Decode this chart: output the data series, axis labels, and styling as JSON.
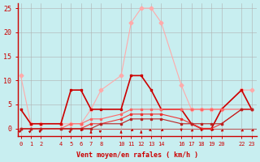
{
  "xlabel": "Vent moyen/en rafales ( km/h )",
  "background_color": "#c8eef0",
  "grid_color": "#b0b0b0",
  "xlim": [
    -0.3,
    23.5
  ],
  "ylim": [
    -1.5,
    26
  ],
  "yticks": [
    0,
    5,
    10,
    15,
    20,
    25
  ],
  "x_ticks": [
    0,
    1,
    2,
    4,
    5,
    6,
    7,
    8,
    10,
    11,
    12,
    13,
    14,
    16,
    17,
    18,
    19,
    20,
    22,
    23
  ],
  "series": [
    {
      "x": [
        0,
        1,
        2,
        4,
        5,
        6,
        7,
        8,
        10,
        11,
        12,
        13,
        14,
        16,
        17,
        18,
        19,
        20,
        22,
        23
      ],
      "y": [
        11,
        1,
        1,
        1,
        1,
        1,
        4,
        8,
        11,
        22,
        25,
        25,
        22,
        9,
        4,
        4,
        4,
        4,
        8,
        8
      ],
      "color": "#ffaaaa",
      "lw": 0.8,
      "marker": "D",
      "ms": 2.5
    },
    {
      "x": [
        0,
        1,
        2,
        4,
        5,
        6,
        7,
        8,
        10,
        11,
        12,
        13,
        14,
        16,
        17,
        18,
        19,
        20,
        22,
        23
      ],
      "y": [
        4,
        1,
        1,
        1,
        8,
        8,
        4,
        4,
        4,
        11,
        11,
        8,
        4,
        4,
        1,
        0,
        0,
        4,
        8,
        4
      ],
      "color": "#cc0000",
      "lw": 1.2,
      "marker": "s",
      "ms": 2.0
    },
    {
      "x": [
        0,
        1,
        2,
        4,
        5,
        6,
        7,
        8,
        10,
        11,
        12,
        13,
        14,
        16,
        17,
        18,
        19,
        20,
        22,
        23
      ],
      "y": [
        0,
        0,
        0,
        0,
        1,
        1,
        2,
        2,
        3,
        4,
        4,
        4,
        4,
        4,
        4,
        4,
        4,
        4,
        4,
        4
      ],
      "color": "#ff6666",
      "lw": 0.8,
      "marker": "s",
      "ms": 1.5
    },
    {
      "x": [
        0,
        1,
        2,
        4,
        5,
        6,
        7,
        8,
        10,
        11,
        12,
        13,
        14,
        16,
        17,
        18,
        19,
        20,
        22,
        23
      ],
      "y": [
        0,
        0,
        0,
        0,
        0,
        0,
        1,
        1,
        2,
        3,
        3,
        3,
        3,
        2,
        1,
        0,
        0,
        1,
        4,
        4
      ],
      "color": "#ee3333",
      "lw": 0.8,
      "marker": "s",
      "ms": 1.5
    },
    {
      "x": [
        0,
        1,
        2,
        4,
        5,
        6,
        7,
        8,
        10,
        11,
        12,
        13,
        14,
        16,
        17,
        18,
        19,
        20,
        22,
        23
      ],
      "y": [
        0,
        0,
        0,
        0,
        0,
        0,
        0,
        1,
        1,
        2,
        2,
        2,
        2,
        1,
        1,
        1,
        1,
        1,
        4,
        4
      ],
      "color": "#bb2222",
      "lw": 0.8,
      "marker": "s",
      "ms": 1.5
    }
  ],
  "arrows_x": [
    0,
    1,
    2,
    4,
    5,
    6,
    7,
    8,
    10,
    11,
    12,
    13,
    14,
    16,
    17,
    18,
    19,
    20,
    22,
    23
  ],
  "arrows_dx": [
    0.3,
    0.2,
    0.3,
    0.0,
    0.2,
    -0.1,
    0.0,
    0.3,
    0.0,
    -0.2,
    0.0,
    0.2,
    -0.2,
    0.0,
    -0.3,
    0.0,
    -0.1,
    -0.3,
    -0.3,
    -0.2
  ],
  "arrows_dy": [
    0.3,
    0.3,
    0.3,
    0.0,
    0.3,
    -0.2,
    0.3,
    0.3,
    0.3,
    -0.3,
    0.3,
    -0.3,
    -0.3,
    -0.3,
    -0.3,
    -0.3,
    -0.2,
    -0.3,
    -0.3,
    -0.2
  ],
  "tick_fontsize": 5,
  "xlabel_fontsize": 6,
  "xlabel_fontweight": "bold"
}
